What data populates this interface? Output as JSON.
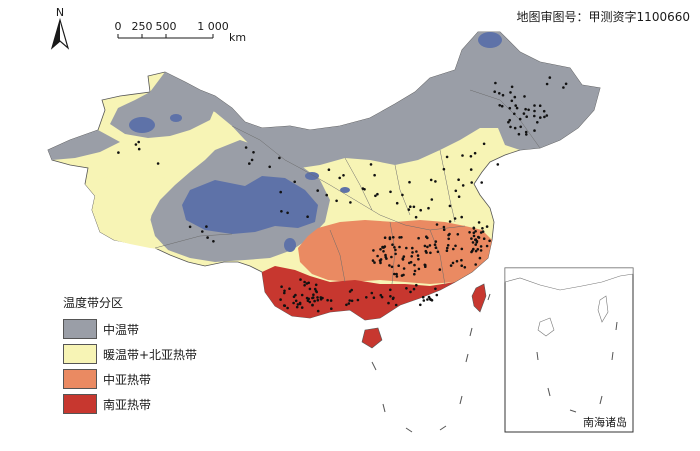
{
  "review_number": "地图审图号：甲测资字1100660",
  "north_arrow": {
    "label": "N",
    "icon": "north-arrow-icon"
  },
  "scale_bar": {
    "ticks": [
      "0",
      "250",
      "500",
      "1 000"
    ],
    "unit": "km"
  },
  "legend": {
    "title": "温度带分区",
    "items": [
      {
        "label": "中温带",
        "color": "#9a9ea7"
      },
      {
        "label": "暖温带+北亚热带",
        "color": "#f7f4b5"
      },
      {
        "label": "中亚热带",
        "color": "#ea8a62"
      },
      {
        "label": "南亚热带",
        "color": "#c7372f"
      }
    ]
  },
  "inset": {
    "label": "南海诸岛"
  },
  "colors": {
    "plateau_blue": "#5e72a8",
    "station_dot": "#111111",
    "boundary": "#555555"
  }
}
